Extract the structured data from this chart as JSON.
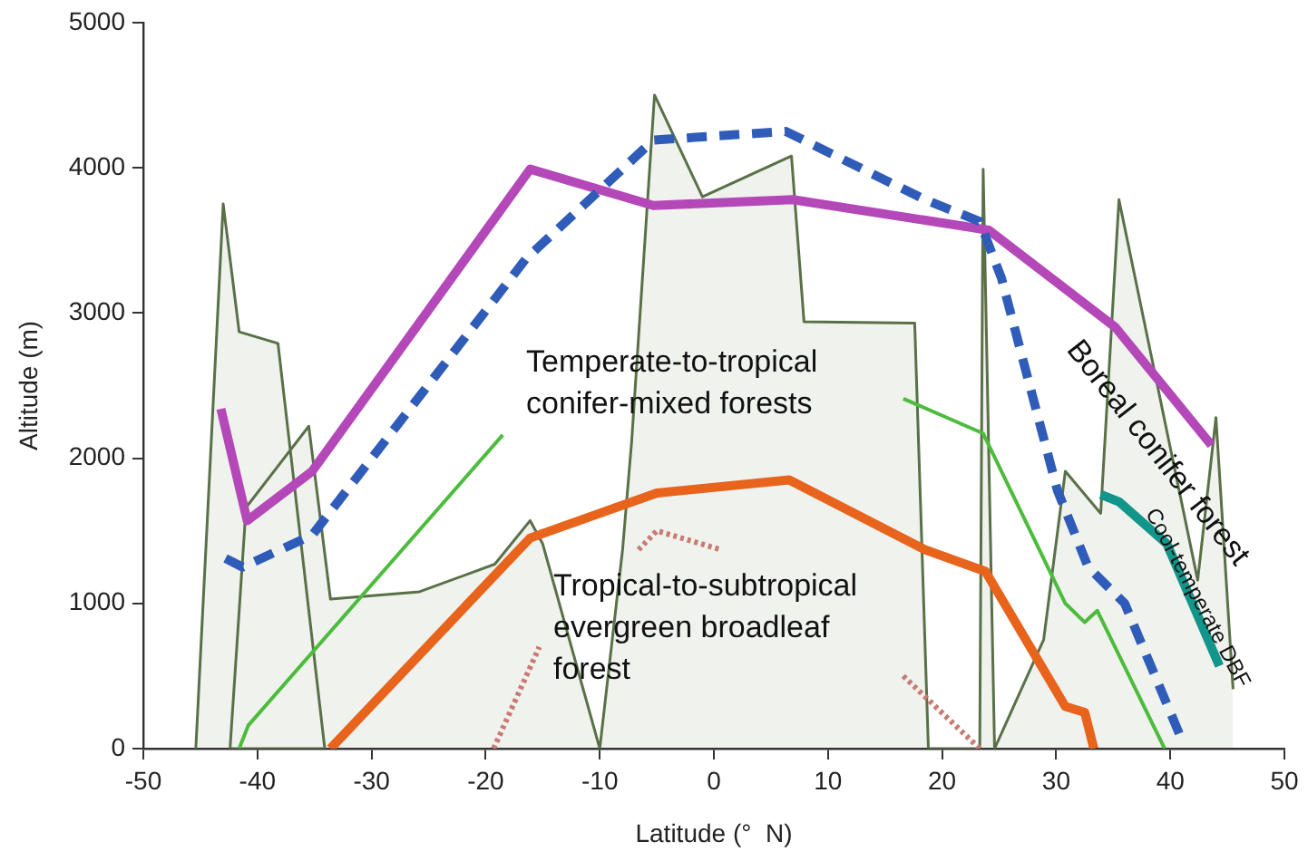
{
  "chart_data": {
    "type": "line",
    "xlabel": "Latitude (°  N)",
    "ylabel": "Altitude (m)",
    "xlim": [
      -50,
      50
    ],
    "xticks": [
      -50,
      -40,
      -30,
      -20,
      -10,
      0,
      10,
      20,
      30,
      40,
      50
    ],
    "ylim": [
      0,
      5000
    ],
    "yticks": [
      0,
      1000,
      2000,
      3000,
      4000,
      5000
    ],
    "grid": false,
    "legend": false,
    "marker": "none",
    "series": [
      {
        "type": "area",
        "color": "#5a7048",
        "line_style": "solid",
        "x": [
          -45.4,
          -43.0,
          -41.6,
          -38.2,
          -34.1,
          -42.4,
          -41.0,
          -35.5,
          -33.6,
          -25.8,
          -19.2,
          -16.1,
          -15.0,
          -10.0,
          -8.0,
          -7.2,
          -5.2,
          -1.0,
          6.8,
          7.9,
          17.6,
          18.8,
          23.3,
          23.6,
          24.6,
          28.9,
          30.8,
          33.9,
          35.5,
          42.4,
          44.0,
          45.5
        ],
        "values": [
          0,
          3750,
          2870,
          2790,
          0,
          0,
          1660,
          2220,
          1030,
          1080,
          1270,
          1570,
          1410,
          0,
          1370,
          2120,
          4500,
          3800,
          4080,
          2940,
          2930,
          0,
          0,
          3990,
          0,
          750,
          1910,
          1620,
          3780,
          1160,
          2280,
          410
        ]
      },
      {
        "color": "#b548b8",
        "line_style": "solid",
        "x": [
          -43.2,
          -40.9,
          -35.2,
          -16.1,
          -5.3,
          6.9,
          24.1,
          35.2,
          43.6
        ],
        "values": [
          2340,
          1570,
          1910,
          3990,
          3740,
          3780,
          3570,
          2900,
          2090
        ]
      },
      {
        "color": "#2f5cb8",
        "line_style": "dashed",
        "x": [
          -42.8,
          -41.3,
          -35.2,
          -16.5,
          -5.3,
          6.3,
          18.5,
          23.3,
          25.2,
          30.1,
          32.8,
          36.0,
          40.8
        ],
        "values": [
          1310,
          1250,
          1470,
          3370,
          4190,
          4250,
          3780,
          3630,
          3240,
          1780,
          1250,
          1000,
          100
        ]
      },
      {
        "color": "#4cbc3c",
        "line_style": "solid",
        "x": [
          -41.6,
          -40.8,
          -18.5
        ],
        "values": [
          0,
          160,
          2160
        ]
      },
      {
        "color": "#4cbc3c",
        "line_style": "solid",
        "x": [
          16.6,
          23.6,
          30.8,
          32.5,
          33.6,
          39.5
        ],
        "values": [
          2410,
          2170,
          1000,
          870,
          950,
          0
        ]
      },
      {
        "color": "#e8631c",
        "line_style": "solid",
        "x": [
          -33.6,
          -16.1,
          -5.0,
          6.6,
          18.5,
          23.8,
          30.8,
          32.5,
          33.3
        ],
        "values": [
          0,
          1450,
          1760,
          1850,
          1370,
          1220,
          290,
          250,
          0
        ]
      },
      {
        "color": "#12958a",
        "line_style": "solid",
        "x": [
          33.9,
          35.5,
          39.7,
          44.3
        ],
        "values": [
          1750,
          1700,
          1410,
          570
        ]
      },
      {
        "color": "#c97a72",
        "line_style": "dotted",
        "x": [
          -19.3,
          -15.3
        ],
        "values": [
          0,
          700
        ]
      },
      {
        "color": "#c97a72",
        "line_style": "dotted",
        "x": [
          -6.6,
          -5.0,
          0.6
        ],
        "values": [
          1370,
          1500,
          1370
        ]
      },
      {
        "color": "#c97a72",
        "line_style": "dotted",
        "x": [
          16.6,
          23.3
        ],
        "values": [
          500,
          0
        ]
      }
    ],
    "annotations": [
      "Temperate-to-tropical conifer-mixed forests",
      "Tropical-to-subtropical evergreen broadleaf forest",
      "Boreal conifer forest",
      "Cool-temperate DBF"
    ]
  }
}
